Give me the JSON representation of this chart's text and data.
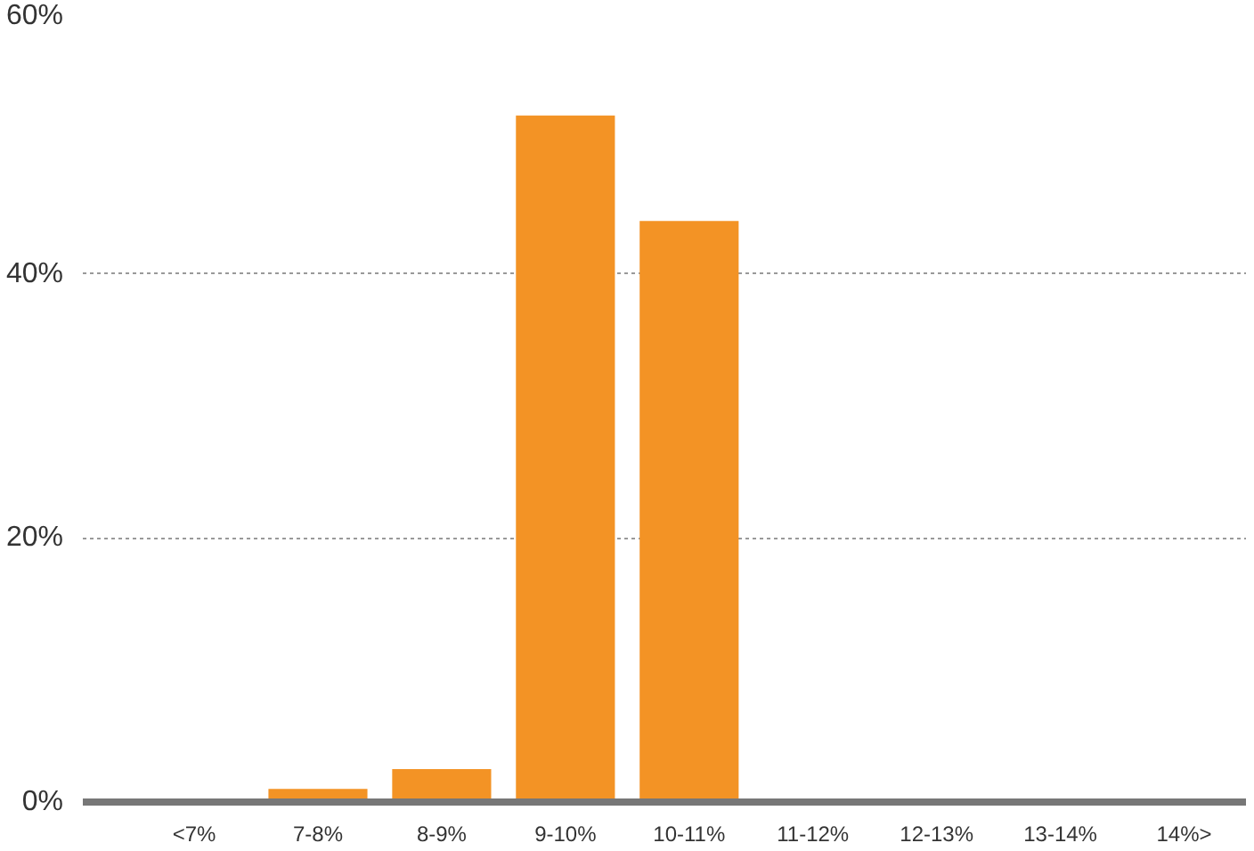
{
  "chart_data": {
    "type": "bar",
    "categories": [
      "<7%",
      "7-8%",
      "8-9%",
      "9-10%",
      "10-11%",
      "11-12%",
      "12-13%",
      "13-14%",
      "14%>"
    ],
    "values": [
      0,
      1,
      2.5,
      52,
      44,
      0,
      0,
      0,
      0
    ],
    "color": "#f39325",
    "ylim": [
      0,
      60
    ],
    "yticks": [
      {
        "value": 0,
        "label": "0%"
      },
      {
        "value": 20,
        "label": "20%"
      },
      {
        "value": 40,
        "label": "40%"
      },
      {
        "value": 60,
        "label": "60%"
      }
    ],
    "grid": "y"
  }
}
